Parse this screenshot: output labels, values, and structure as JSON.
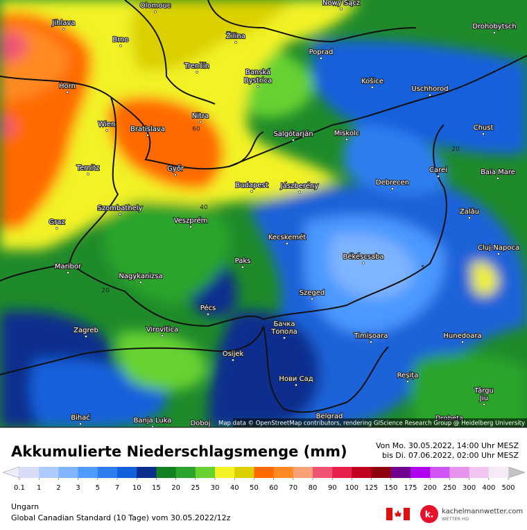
{
  "map": {
    "cities": [
      "Olomouc",
      "Nowy Sącz",
      "Jihlava",
      "Drohobytsch",
      "Brno",
      "Žilina",
      "Poprad",
      "Horn",
      "Trenčín",
      "Banská",
      "Bystrica",
      "Košice",
      "Uschhorod",
      "Nitra",
      "Wien",
      "Bratislava",
      "Salgótarján",
      "Miskolc",
      "Chust",
      "Ternitz",
      "Győr",
      "Carei",
      "Baia Mare",
      "Budapest",
      "Jászberény",
      "Debrecen",
      "Szombathely",
      "Zalău",
      "Graz",
      "Veszprém",
      "Kecskemét",
      "Cluj-Napoca",
      "Maribor",
      "Békéscsaba",
      "Paks",
      "Nagykanizsa",
      "Szeged",
      "Pécs",
      "Zagreb",
      "Virovitica",
      "Бачка",
      "Топола",
      "Timișoara",
      "Hunedoara",
      "Osijek",
      "Нови Сад",
      "Reșița",
      "Târgu",
      "Jiu",
      "Belgrad",
      "Bihać",
      "Banja Luka",
      "Doboj",
      "Drobeta",
      "Maribor"
    ],
    "contour_labels": [
      "60",
      "40",
      "20",
      "20",
      "5"
    ],
    "attribution": "Map data © OpenStreetMap contributors, rendering GIScience Research Group @ Heidelberg University"
  },
  "legend": {
    "title": "Akkumulierte Niederschlagsmenge (mm)",
    "period": [
      "Von Mo. 30.05.2022, 14:00 Uhr MESZ",
      "bis Di. 07.06.2022, 02:00 Uhr MESZ"
    ],
    "colorbar": {
      "ticks": [
        0.1,
        1,
        2,
        3,
        5,
        7,
        10,
        15,
        20,
        25,
        30,
        40,
        50,
        60,
        70,
        80,
        90,
        100,
        125,
        150,
        175,
        200,
        250,
        300,
        400,
        500
      ],
      "colors": [
        "#d8dcf6",
        "#aecbff",
        "#80b4ff",
        "#4f9aff",
        "#2f7ef0",
        "#1460dc",
        "#0c2e8e",
        "#138022",
        "#2aa42c",
        "#66d232",
        "#f2f226",
        "#dcd000",
        "#ff6a00",
        "#ff8a24",
        "#f6a276",
        "#f05274",
        "#e8204e",
        "#c00020",
        "#8e0010",
        "#700090",
        "#b000f0",
        "#d054f6",
        "#e892f0",
        "#f2c4f2",
        "#f6eaf6"
      ],
      "under_color": "#ececfa",
      "over_color": "#c4c4c4"
    }
  },
  "footer": {
    "region": "Ungarn",
    "model": "Global Canadian Standard (10 Tage) vom 30.05.2022/12z",
    "brand": "kachelmannwetter.com",
    "brand_sub": "WETTER HD",
    "brand_icon": "k."
  }
}
